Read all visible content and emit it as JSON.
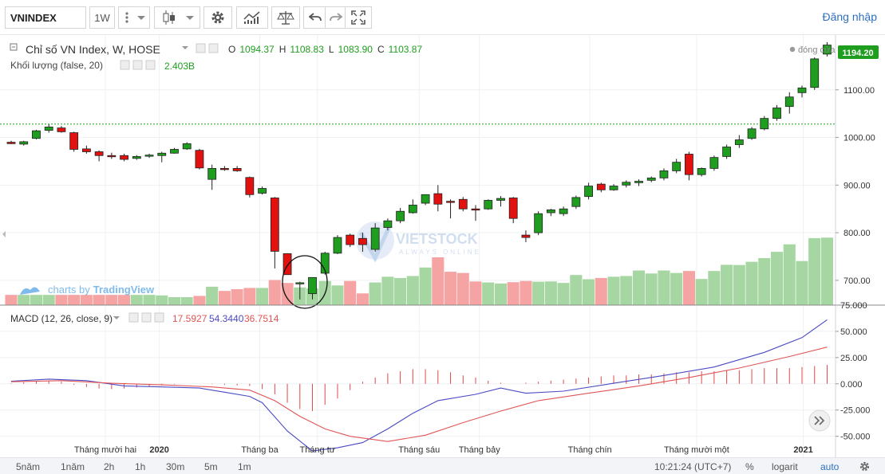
{
  "toolbar": {
    "symbol": "VNINDEX",
    "interval": "1W",
    "login": "Đăng nhập"
  },
  "legend": {
    "main_title": "Chỉ số VN Index, W, HOSE",
    "o_label": "O",
    "o_value": "1094.37",
    "h_label": "H",
    "h_value": "1108.83",
    "l_label": "L",
    "l_value": "1083.90",
    "c_label": "C",
    "c_value": "1103.87",
    "volume_title": "Khối lượng (false, 20)",
    "volume_value": "2.403B",
    "macd_title": "MACD (12, 26, close, 9)",
    "macd_hist": "17.5927",
    "macd_line": "54.3440",
    "macd_signal": "36.7514",
    "close_marker": "đóng cửa",
    "last_price": "1194.20"
  },
  "watermark": {
    "brand": "VIETSTOCK",
    "tagline": "ALWAYS ONLINE"
  },
  "tradingview": {
    "prefix": "charts by",
    "name": "TradingView"
  },
  "bottombar": {
    "ranges": [
      "5năm",
      "1năm",
      "2h",
      "1h",
      "30m",
      "5m",
      "1m"
    ],
    "clock": "10:21:24 (UTC+7)",
    "percent": "%",
    "log": "logarit",
    "auto": "auto"
  },
  "colors": {
    "up": "#1e9d1e",
    "down": "#e31010",
    "vol_up": "#a6d6a2",
    "vol_down": "#f5a3a3",
    "macd_line": "#4a4ac4",
    "signal_line": "#e05555",
    "hist": "#e04848",
    "dotted": "#1e9d1e"
  },
  "chart_data": [
    {
      "type": "candlestick",
      "title": "Chỉ số VN Index, W, HOSE",
      "ylim": [
        648,
        1215
      ],
      "yticks": [
        700,
        800,
        900,
        1000,
        1100
      ],
      "reference_line": 1028,
      "x_labels": [
        {
          "label": "Tháng mười hai",
          "index": 7.5
        },
        {
          "label": "2020",
          "index": 11.8
        },
        {
          "label": "Tháng ba",
          "index": 19.8
        },
        {
          "label": "Tháng tư",
          "index": 24.4
        },
        {
          "label": "Tháng sáu",
          "index": 32.5
        },
        {
          "label": "Tháng bảy",
          "index": 37.3
        },
        {
          "label": "Tháng chín",
          "index": 46.1
        },
        {
          "label": "Tháng mười một",
          "index": 54.6
        },
        {
          "label": "2021",
          "index": 63.1
        }
      ],
      "candles": [
        {
          "o": 990,
          "h": 993,
          "l": 986,
          "c": 987
        },
        {
          "o": 986,
          "h": 993,
          "l": 983,
          "c": 991
        },
        {
          "o": 998,
          "h": 1016,
          "l": 996,
          "c": 1014
        },
        {
          "o": 1015,
          "h": 1028,
          "l": 1010,
          "c": 1022
        },
        {
          "o": 1020,
          "h": 1024,
          "l": 1010,
          "c": 1012
        },
        {
          "o": 1010,
          "h": 1012,
          "l": 970,
          "c": 975
        },
        {
          "o": 976,
          "h": 983,
          "l": 966,
          "c": 970
        },
        {
          "o": 970,
          "h": 973,
          "l": 950,
          "c": 962
        },
        {
          "o": 962,
          "h": 968,
          "l": 955,
          "c": 960
        },
        {
          "o": 962,
          "h": 966,
          "l": 950,
          "c": 954
        },
        {
          "o": 956,
          "h": 963,
          "l": 953,
          "c": 960
        },
        {
          "o": 961,
          "h": 966,
          "l": 957,
          "c": 963
        },
        {
          "o": 962,
          "h": 970,
          "l": 948,
          "c": 967
        },
        {
          "o": 967,
          "h": 978,
          "l": 966,
          "c": 975
        },
        {
          "o": 976,
          "h": 990,
          "l": 974,
          "c": 987
        },
        {
          "o": 973,
          "h": 976,
          "l": 933,
          "c": 936
        },
        {
          "o": 912,
          "h": 943,
          "l": 890,
          "c": 935
        },
        {
          "o": 935,
          "h": 940,
          "l": 930,
          "c": 933
        },
        {
          "o": 935,
          "h": 940,
          "l": 928,
          "c": 930
        },
        {
          "o": 916,
          "h": 918,
          "l": 874,
          "c": 880
        },
        {
          "o": 883,
          "h": 897,
          "l": 880,
          "c": 893
        },
        {
          "o": 873,
          "h": 875,
          "l": 725,
          "c": 761
        },
        {
          "o": 756,
          "h": 757,
          "l": 712,
          "c": 712
        },
        {
          "o": 695,
          "h": 697,
          "l": 660,
          "c": 695
        },
        {
          "o": 672,
          "h": 706,
          "l": 660,
          "c": 706
        },
        {
          "o": 715,
          "h": 760,
          "l": 712,
          "c": 757
        },
        {
          "o": 757,
          "h": 795,
          "l": 755,
          "c": 790
        },
        {
          "o": 795,
          "h": 798,
          "l": 770,
          "c": 775
        },
        {
          "o": 788,
          "h": 800,
          "l": 760,
          "c": 775
        },
        {
          "o": 765,
          "h": 820,
          "l": 760,
          "c": 810
        },
        {
          "o": 811,
          "h": 830,
          "l": 805,
          "c": 825
        },
        {
          "o": 825,
          "h": 852,
          "l": 820,
          "c": 845
        },
        {
          "o": 842,
          "h": 870,
          "l": 840,
          "c": 858
        },
        {
          "o": 862,
          "h": 880,
          "l": 858,
          "c": 880
        },
        {
          "o": 882,
          "h": 900,
          "l": 845,
          "c": 860
        },
        {
          "o": 866,
          "h": 870,
          "l": 830,
          "c": 865
        },
        {
          "o": 870,
          "h": 875,
          "l": 845,
          "c": 850
        },
        {
          "o": 850,
          "h": 858,
          "l": 825,
          "c": 848
        },
        {
          "o": 850,
          "h": 870,
          "l": 848,
          "c": 868
        },
        {
          "o": 868,
          "h": 877,
          "l": 855,
          "c": 872
        },
        {
          "o": 873,
          "h": 875,
          "l": 820,
          "c": 830
        },
        {
          "o": 795,
          "h": 805,
          "l": 780,
          "c": 790
        },
        {
          "o": 800,
          "h": 845,
          "l": 795,
          "c": 840
        },
        {
          "o": 842,
          "h": 850,
          "l": 835,
          "c": 848
        },
        {
          "o": 840,
          "h": 855,
          "l": 835,
          "c": 850
        },
        {
          "o": 855,
          "h": 878,
          "l": 850,
          "c": 874
        },
        {
          "o": 876,
          "h": 905,
          "l": 870,
          "c": 898
        },
        {
          "o": 902,
          "h": 905,
          "l": 885,
          "c": 890
        },
        {
          "o": 890,
          "h": 902,
          "l": 888,
          "c": 898
        },
        {
          "o": 900,
          "h": 910,
          "l": 895,
          "c": 906
        },
        {
          "o": 905,
          "h": 912,
          "l": 898,
          "c": 908
        },
        {
          "o": 910,
          "h": 918,
          "l": 906,
          "c": 915
        },
        {
          "o": 915,
          "h": 935,
          "l": 910,
          "c": 930
        },
        {
          "o": 930,
          "h": 955,
          "l": 925,
          "c": 948
        },
        {
          "o": 965,
          "h": 970,
          "l": 910,
          "c": 922
        },
        {
          "o": 922,
          "h": 937,
          "l": 918,
          "c": 935
        },
        {
          "o": 935,
          "h": 962,
          "l": 930,
          "c": 958
        },
        {
          "o": 960,
          "h": 985,
          "l": 955,
          "c": 980
        },
        {
          "o": 985,
          "h": 1005,
          "l": 978,
          "c": 995
        },
        {
          "o": 998,
          "h": 1022,
          "l": 995,
          "c": 1018
        },
        {
          "o": 1018,
          "h": 1045,
          "l": 1015,
          "c": 1040
        },
        {
          "o": 1040,
          "h": 1068,
          "l": 1035,
          "c": 1062
        },
        {
          "o": 1065,
          "h": 1095,
          "l": 1050,
          "c": 1085
        },
        {
          "o": 1094,
          "h": 1109,
          "l": 1084,
          "c": 1104
        },
        {
          "o": 1105,
          "h": 1168,
          "l": 1100,
          "c": 1165
        },
        {
          "o": 1175,
          "h": 1200,
          "l": 1170,
          "c": 1194
        }
      ],
      "volume": [
        42,
        42,
        42,
        42,
        42,
        42,
        42,
        42,
        42,
        42,
        42,
        42,
        40,
        33,
        33,
        38,
        75,
        58,
        65,
        70,
        70,
        102,
        90,
        72,
        68,
        98,
        80,
        98,
        48,
        92,
        115,
        110,
        118,
        152,
        193,
        135,
        130,
        96,
        92,
        88,
        93,
        98,
        95,
        96,
        90,
        122,
        105,
        110,
        115,
        118,
        140,
        128,
        140,
        130,
        138,
        106,
        138,
        163,
        162,
        175,
        190,
        215,
        245,
        178,
        270,
        272
      ]
    },
    {
      "type": "line",
      "title": "MACD (12, 26, close, 9)",
      "ylim": [
        -70,
        75
      ],
      "yticks": [
        -50,
        -25,
        0,
        25,
        50,
        75
      ],
      "series": [
        {
          "x": [
            0,
            3,
            6,
            9,
            12,
            15,
            17,
            19,
            20,
            22,
            24,
            26,
            28,
            30,
            32,
            34,
            37,
            39,
            41,
            44,
            48,
            52,
            56,
            60,
            63,
            65
          ],
          "y": [
            2.5,
            4.5,
            3,
            -2,
            -3,
            -4,
            -8,
            -12,
            -18,
            -45,
            -64,
            -61,
            -56,
            -43,
            -28,
            -16,
            -10,
            -4,
            -9,
            -7,
            0.5,
            8,
            16,
            30,
            44,
            61
          ]
        },
        {
          "x": [
            0,
            4,
            8,
            12,
            16,
            19,
            21,
            23,
            25,
            27,
            30,
            33,
            36,
            39,
            42,
            46,
            50,
            54,
            58,
            62,
            65
          ],
          "y": [
            2,
            3,
            0.5,
            -1,
            -3,
            -6,
            -16,
            -31,
            -43,
            -50,
            -55,
            -49,
            -37,
            -26,
            -16,
            -9,
            -2,
            6,
            15,
            26,
            35
          ]
        }
      ],
      "histogram": [
        0.5,
        1.5,
        2.5,
        3,
        2,
        -1,
        -3,
        -4.5,
        -5,
        -4.5,
        -3.5,
        -2.5,
        -1.5,
        -0.5,
        0,
        0,
        -0.5,
        -1,
        -1.5,
        -2,
        -5,
        -10,
        -18,
        -24,
        -26,
        -20,
        -14,
        -6,
        2,
        6,
        10,
        12,
        14,
        14,
        13,
        11,
        8,
        6,
        3,
        1,
        0,
        1,
        2,
        3,
        4,
        5,
        6,
        7,
        8,
        8,
        9,
        9,
        10,
        11,
        11,
        12,
        12,
        13,
        13,
        14,
        15,
        15,
        15,
        16,
        17,
        18
      ]
    }
  ]
}
